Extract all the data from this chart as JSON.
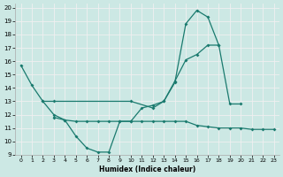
{
  "xlabel": "Humidex (Indice chaleur)",
  "xlim": [
    -0.5,
    23.5
  ],
  "ylim": [
    9,
    20.3
  ],
  "xticks": [
    0,
    1,
    2,
    3,
    4,
    5,
    6,
    7,
    8,
    9,
    10,
    11,
    12,
    13,
    14,
    15,
    16,
    17,
    18,
    19,
    20,
    21,
    22,
    23
  ],
  "yticks": [
    9,
    10,
    11,
    12,
    13,
    14,
    15,
    16,
    17,
    18,
    19,
    20
  ],
  "bg_color": "#cce8e4",
  "grid_color": "#f0f0f0",
  "line_color": "#1a7a6e",
  "line1_x": [
    0,
    1,
    2,
    3,
    4,
    5,
    6,
    7,
    8,
    9,
    10,
    11,
    12,
    13,
    14,
    15,
    16,
    17,
    18
  ],
  "line1_y": [
    15.7,
    14.2,
    13.0,
    12.0,
    11.6,
    10.4,
    9.5,
    9.2,
    9.2,
    11.5,
    11.5,
    12.5,
    12.7,
    13.0,
    14.4,
    18.8,
    19.8,
    19.3,
    17.2
  ],
  "line2_x": [
    2,
    3,
    10,
    12,
    13,
    14,
    15,
    16,
    17,
    18,
    19,
    20
  ],
  "line2_y": [
    13.0,
    13.0,
    13.0,
    12.5,
    13.0,
    14.5,
    16.1,
    16.5,
    17.2,
    17.2,
    12.8,
    12.8
  ],
  "line3_x": [
    3,
    4,
    5,
    6,
    7,
    8,
    9,
    10,
    11,
    12,
    13,
    14,
    15,
    16,
    17,
    18,
    19,
    20,
    21,
    22,
    23
  ],
  "line3_y": [
    11.8,
    11.6,
    11.5,
    11.5,
    11.5,
    11.5,
    11.5,
    11.5,
    11.5,
    11.5,
    11.5,
    11.5,
    11.5,
    11.2,
    11.1,
    11.0,
    11.0,
    11.0,
    10.9,
    10.9,
    10.9
  ]
}
